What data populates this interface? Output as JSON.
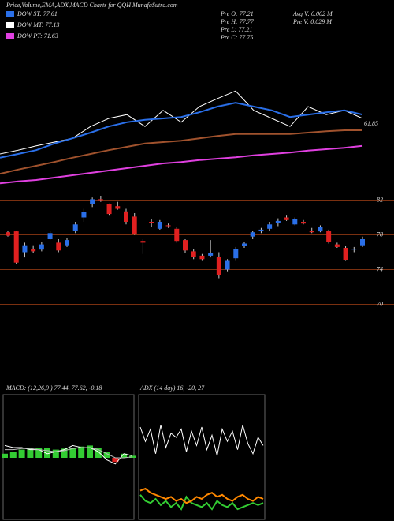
{
  "header": {
    "title": "Price,Volume,EMA,ADX,MACD Charts for QQH MunafaSutra.com",
    "legend": [
      {
        "label": "DOW ST: 77.61",
        "color": "#2a6fe8"
      },
      {
        "label": "DOW MT: 77.13",
        "color": "#ffffff"
      },
      {
        "label": "DOW PT: 71.63",
        "color": "#e040e0"
      }
    ],
    "stats": [
      "Pre O: 77.21",
      "Pre H: 77.77",
      "Pre L: 77.21",
      "Pre C: 77.75",
      "Avg V: 0.002 M",
      "Pre V: 0.029 M"
    ]
  },
  "chart_data": [
    {
      "type": "line",
      "annotation": "61.85",
      "ylim": [
        55,
        85
      ],
      "series": [
        {
          "name": "Price",
          "color": "#ffffff",
          "values": [
            62.5,
            63.3,
            64.2,
            65,
            65.8,
            68.3,
            70,
            70.8,
            68.3,
            71.7,
            69.2,
            72.5,
            74.2,
            75.8,
            71.7,
            70,
            68.3,
            72.5,
            70.8,
            71.7,
            70
          ]
        },
        {
          "name": "EMA short",
          "color": "#2a6fe8",
          "values": [
            61.7,
            62.5,
            63.3,
            64.7,
            65.8,
            67,
            68.3,
            69.2,
            69.7,
            70,
            70.3,
            71.3,
            72.5,
            73.3,
            72.5,
            71.7,
            70.3,
            70.8,
            71.3,
            71.7,
            70.8
          ]
        },
        {
          "name": "EMA long",
          "color": "#a0522d",
          "values": [
            58.3,
            59.2,
            60,
            60.8,
            61.7,
            62.5,
            63.3,
            64,
            64.7,
            65,
            65.3,
            65.8,
            66.3,
            66.7,
            66.7,
            66.7,
            66.7,
            67,
            67.3,
            67.5,
            67.5
          ]
        },
        {
          "name": "EMA PT",
          "color": "#e040e0",
          "values": [
            56.3,
            56.7,
            57,
            57.5,
            58,
            58.5,
            59,
            59.5,
            60,
            60.5,
            60.8,
            61.2,
            61.5,
            61.8,
            62.2,
            62.5,
            62.8,
            63.2,
            63.5,
            63.8,
            64.2
          ]
        }
      ]
    },
    {
      "type": "candlestick",
      "ylim": [
        68.5,
        83.5
      ],
      "yticks": [
        82,
        78,
        74,
        70
      ],
      "up_color": "#2a6fe8",
      "down_color": "#e02020",
      "grid_color": "#7a3010",
      "open": [
        78.3,
        78.4,
        76.0,
        76.4,
        76.3,
        77.5,
        77.1,
        76.8,
        78.5,
        80.0,
        81.5,
        82.1,
        81.5,
        81.3,
        80.7,
        80.1,
        77.3,
        79.5,
        78.7,
        79.1,
        78.7,
        77.4,
        76.1,
        75.6,
        75.6,
        75.5,
        74.0,
        75.3,
        76.7,
        77.8,
        78.5,
        78.7,
        79.4,
        80.0,
        79.2,
        79.5,
        78.5,
        78.4,
        78.5,
        76.9,
        76.5,
        76.3,
        76.8
      ],
      "high": [
        78.5,
        78.5,
        77.1,
        76.8,
        77.2,
        78.5,
        77.5,
        77.6,
        79.5,
        81.0,
        82.3,
        82.5,
        81.6,
        81.8,
        81.0,
        80.5,
        77.5,
        79.8,
        79.7,
        79.3,
        78.9,
        77.5,
        76.4,
        75.8,
        77.4,
        76.0,
        75.2,
        76.6,
        77.2,
        78.5,
        78.8,
        79.5,
        79.9,
        80.3,
        80.0,
        79.7,
        78.8,
        79.1,
        78.6,
        77.1,
        76.7,
        76.6,
        77.8
      ],
      "low": [
        77.8,
        74.6,
        75.4,
        75.9,
        76.1,
        77.4,
        76.0,
        76.6,
        78.2,
        79.5,
        81.2,
        81.8,
        80.3,
        80.9,
        79.2,
        78.0,
        75.8,
        78.9,
        78.6,
        78.8,
        77.1,
        75.9,
        75.2,
        75.0,
        75.4,
        73.0,
        73.8,
        75.0,
        76.5,
        77.5,
        78.2,
        78.5,
        79.0,
        79.6,
        79.1,
        79.2,
        78.2,
        78.3,
        77.0,
        76.5,
        75.0,
        76.0,
        76.6
      ],
      "close": [
        77.9,
        74.8,
        76.8,
        76.1,
        76.9,
        78.2,
        76.2,
        77.4,
        79.2,
        80.6,
        82.1,
        82.0,
        80.4,
        81.0,
        79.5,
        78.1,
        77.1,
        79.4,
        79.5,
        79.0,
        77.3,
        76.2,
        75.5,
        75.2,
        75.9,
        73.4,
        75.0,
        76.4,
        77.0,
        78.3,
        78.6,
        79.2,
        79.6,
        79.7,
        79.8,
        79.3,
        78.3,
        78.9,
        77.2,
        76.6,
        75.1,
        76.4,
        77.5
      ]
    },
    {
      "type": "macd",
      "label": "MACD: (12,26,9 ) 77.44, 77.62, -0.18",
      "ylim": [
        -3,
        3
      ],
      "color": "#33cc33",
      "series": [
        {
          "name": "MACD",
          "color": "#ffffff",
          "values": [
            0.6,
            0.5,
            0.5,
            0.4,
            0.4,
            0.2,
            0.3,
            0.4,
            0.6,
            0.5,
            0.5,
            0.3,
            -0.1,
            -0.3,
            0.2,
            0.1
          ]
        },
        {
          "name": "Signal",
          "color": "#bbbbbb",
          "values": [
            0.4,
            0.4,
            0.45,
            0.45,
            0.4,
            0.35,
            0.3,
            0.35,
            0.45,
            0.5,
            0.5,
            0.4,
            0.2,
            0,
            0,
            0.05
          ]
        }
      ],
      "histogram": [
        0.2,
        0.3,
        0.4,
        0.45,
        0.5,
        0.5,
        0.4,
        0.45,
        0.5,
        0.55,
        0.6,
        0.5,
        0.3,
        -0.2,
        0.2,
        0.1
      ]
    },
    {
      "type": "adx",
      "label": "ADX (14 day) 16, -20, 27",
      "ylim": [
        0,
        60
      ],
      "series": [
        {
          "name": "ADX",
          "color": "#ffffff",
          "values": [
            45,
            38,
            44,
            32,
            46,
            35,
            42,
            40,
            44,
            33,
            43,
            36,
            45,
            34,
            41,
            31,
            44,
            38,
            43,
            34,
            46,
            37,
            32,
            40,
            36
          ]
        },
        {
          "name": "+DI",
          "color": "#33cc33",
          "values": [
            12,
            9,
            8,
            10,
            7,
            9,
            6,
            8,
            5,
            11,
            8,
            7,
            6,
            8,
            5,
            9,
            7,
            6,
            8,
            5,
            6,
            7,
            8,
            7,
            8
          ]
        },
        {
          "name": "-DI",
          "color": "#ff8800",
          "values": [
            14,
            15,
            13,
            12,
            11,
            10,
            11,
            9,
            10,
            8,
            9,
            11,
            10,
            12,
            13,
            11,
            12,
            10,
            9,
            11,
            12,
            10,
            9,
            11,
            10
          ]
        }
      ]
    }
  ]
}
